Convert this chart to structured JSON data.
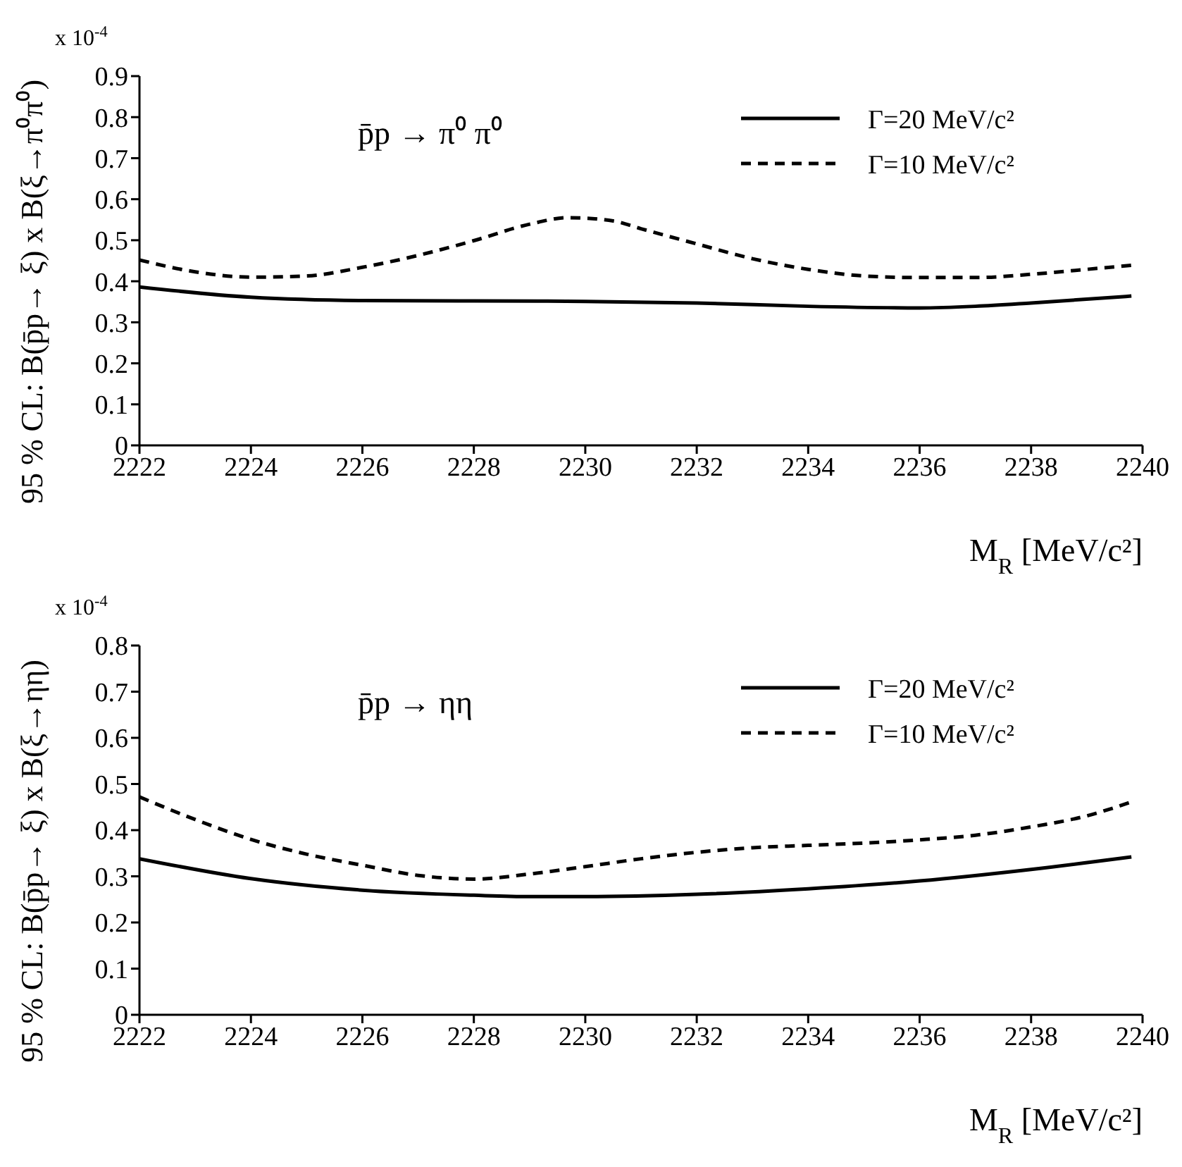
{
  "chart_data": [
    {
      "type": "line",
      "xlabel": "M$_{R}$ [MeV/c²]",
      "ylabel": "95 % CL: B(p̄p→ ξ) x B(ξ→π⁰π⁰)",
      "annotations": [
        "x 10$^{-4}$",
        "p̄p → π⁰ π⁰"
      ],
      "xlim": [
        2222,
        2240
      ],
      "xticks": [
        2222,
        2224,
        2226,
        2228,
        2230,
        2232,
        2234,
        2236,
        2238,
        2240
      ],
      "ylim": [
        0,
        0.9
      ],
      "yticks": [
        0,
        0.1,
        0.2,
        0.3,
        0.4,
        0.5,
        0.6,
        0.7,
        0.8,
        0.9
      ],
      "grid": false,
      "legend": "top right",
      "marker": "none",
      "series": [
        {
          "name": "Γ=20 MeV/c²",
          "color": "#000000",
          "line_style": "solid",
          "x": [
            2222,
            2224,
            2226,
            2228,
            2230,
            2232,
            2234,
            2236,
            2237,
            2238,
            2239.8
          ],
          "values": [
            0.386,
            0.361,
            0.353,
            0.352,
            0.351,
            0.347,
            0.339,
            0.335,
            0.339,
            0.347,
            0.364
          ]
        },
        {
          "name": "Γ=10 MeV/c²",
          "color": "#000000",
          "line_style": "dashed",
          "x": [
            2222,
            2223,
            2224,
            2225,
            2226,
            2227,
            2228,
            2229,
            2229.7,
            2230.5,
            2231,
            2232,
            2233,
            2234,
            2235,
            2236,
            2237,
            2238,
            2239,
            2239.8
          ],
          "values": [
            0.452,
            0.423,
            0.41,
            0.413,
            0.434,
            0.463,
            0.499,
            0.539,
            0.555,
            0.547,
            0.528,
            0.491,
            0.455,
            0.429,
            0.413,
            0.409,
            0.409,
            0.417,
            0.429,
            0.439
          ]
        }
      ]
    },
    {
      "type": "line",
      "xlabel": "M$_{R}$ [MeV/c²]",
      "ylabel": "95 % CL: B(p̄p→ ξ) x B(ξ→ηη)",
      "annotations": [
        "x 10$^{-4}$",
        "p̄p → ηη"
      ],
      "xlim": [
        2222,
        2240
      ],
      "xticks": [
        2222,
        2224,
        2226,
        2228,
        2230,
        2232,
        2234,
        2236,
        2238,
        2240
      ],
      "ylim": [
        0,
        0.8
      ],
      "yticks": [
        0,
        0.1,
        0.2,
        0.3,
        0.4,
        0.5,
        0.6,
        0.7,
        0.8
      ],
      "grid": false,
      "legend": "top right",
      "marker": "none",
      "series": [
        {
          "name": "Γ=20 MeV/c²",
          "color": "#000000",
          "line_style": "solid",
          "x": [
            2222,
            2224,
            2226,
            2228,
            2229,
            2230,
            2232,
            2234,
            2236,
            2238,
            2239.8
          ],
          "values": [
            0.338,
            0.295,
            0.27,
            0.259,
            0.256,
            0.256,
            0.261,
            0.273,
            0.29,
            0.315,
            0.342
          ]
        },
        {
          "name": "Γ=10 MeV/c²",
          "color": "#000000",
          "line_style": "dashed",
          "x": [
            2222,
            2223,
            2224,
            2225,
            2226,
            2227,
            2228,
            2229,
            2230,
            2231,
            2232,
            2233,
            2234,
            2235,
            2236,
            2237,
            2238,
            2239,
            2239.8
          ],
          "values": [
            0.472,
            0.423,
            0.38,
            0.348,
            0.324,
            0.302,
            0.294,
            0.305,
            0.321,
            0.338,
            0.352,
            0.362,
            0.367,
            0.372,
            0.379,
            0.389,
            0.407,
            0.431,
            0.461
          ]
        }
      ]
    }
  ]
}
